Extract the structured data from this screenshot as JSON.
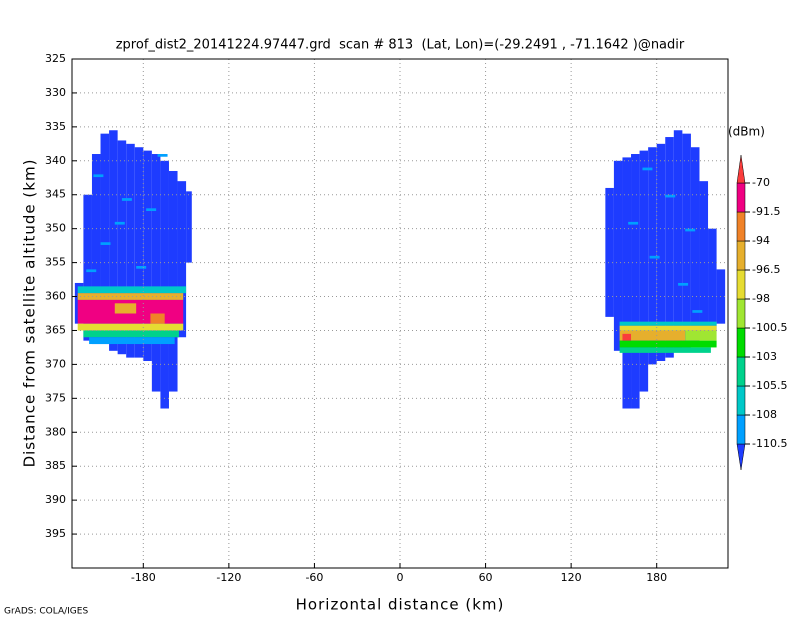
{
  "chart_data": {
    "type": "heatmap",
    "title": "zprof_dist2_20141224.97447.grd  scan # 813  (Lat, Lon)=(-29.2491 , -71.1642 )@nadir",
    "x_label": "Horizontal distance (km)",
    "y_label": "Distance from satellite altitude (km)",
    "footer": "GrADS: COLA/IGES",
    "colorbar_unit": "(dBm)",
    "xlim": [
      -230,
      230
    ],
    "ylim": [
      400,
      325
    ],
    "y_inverted": true,
    "xticks": [
      -180,
      -120,
      -60,
      0,
      60,
      120,
      180
    ],
    "yticks": [
      325,
      330,
      335,
      340,
      345,
      350,
      355,
      360,
      365,
      370,
      375,
      380,
      385,
      390,
      395
    ],
    "grid": true,
    "levels": [
      -110.5,
      -108,
      -105.5,
      -103,
      -100.5,
      -98,
      -96.5,
      -94,
      -91.5,
      -70
    ],
    "colors": [
      "#1e3cff",
      "#00a0ff",
      "#00c8c8",
      "#00d28c",
      "#00dc00",
      "#a0e632",
      "#e6dc32",
      "#e6af2d",
      "#f08228",
      "#f00082",
      "#fa3c3c"
    ],
    "cells": [
      {
        "x": [
          -228,
          -222
        ],
        "y": [
          358,
          364
        ],
        "value": -112
      },
      {
        "x": [
          -222,
          -216
        ],
        "y": [
          345,
          366.5
        ],
        "value": -112
      },
      {
        "x": [
          -216,
          -210
        ],
        "y": [
          339,
          367
        ],
        "value": -112
      },
      {
        "x": [
          -210,
          -204
        ],
        "y": [
          336,
          367
        ],
        "value": -112
      },
      {
        "x": [
          -204,
          -198
        ],
        "y": [
          335.5,
          368
        ],
        "value": -112
      },
      {
        "x": [
          -198,
          -192
        ],
        "y": [
          337,
          368.5
        ],
        "value": -112
      },
      {
        "x": [
          -192,
          -186
        ],
        "y": [
          337.5,
          369
        ],
        "value": -112
      },
      {
        "x": [
          -186,
          -180
        ],
        "y": [
          338,
          369
        ],
        "value": -112
      },
      {
        "x": [
          -180,
          -174
        ],
        "y": [
          338.5,
          369.5
        ],
        "value": -112
      },
      {
        "x": [
          -174,
          -168
        ],
        "y": [
          339,
          374
        ],
        "value": -112
      },
      {
        "x": [
          -168,
          -162
        ],
        "y": [
          340,
          376.5
        ],
        "value": -112
      },
      {
        "x": [
          -162,
          -156
        ],
        "y": [
          341.5,
          374
        ],
        "value": -112
      },
      {
        "x": [
          -156,
          -150
        ],
        "y": [
          343,
          366
        ],
        "value": -112
      },
      {
        "x": [
          -150,
          -146
        ],
        "y": [
          344.5,
          355
        ],
        "value": -112
      },
      {
        "x": [
          -226,
          -150
        ],
        "y": [
          358.5,
          359.5
        ],
        "value": -107
      },
      {
        "x": [
          -226,
          -152
        ],
        "y": [
          359.5,
          360.5
        ],
        "value": -95
      },
      {
        "x": [
          -226,
          -152
        ],
        "y": [
          360.5,
          364
        ],
        "value": -88
      },
      {
        "x": [
          -200,
          -185
        ],
        "y": [
          361,
          362.5
        ],
        "value": -95
      },
      {
        "x": [
          -175,
          -165
        ],
        "y": [
          362.5,
          364
        ],
        "value": -93
      },
      {
        "x": [
          -226,
          -152
        ],
        "y": [
          364,
          365
        ],
        "value": -97
      },
      {
        "x": [
          -222,
          -155
        ],
        "y": [
          365,
          366
        ],
        "value": -104
      },
      {
        "x": [
          -218,
          -158
        ],
        "y": [
          366,
          367
        ],
        "value": -109
      },
      {
        "x": [
          -215,
          -208
        ],
        "y": [
          342,
          342.4
        ],
        "value": -109
      },
      {
        "x": [
          -195,
          -188
        ],
        "y": [
          345.5,
          345.9
        ],
        "value": -109
      },
      {
        "x": [
          -170,
          -163
        ],
        "y": [
          339,
          339.4
        ],
        "value": -109
      },
      {
        "x": [
          -210,
          -203
        ],
        "y": [
          352,
          352.4
        ],
        "value": -109
      },
      {
        "x": [
          -185,
          -178
        ],
        "y": [
          355.5,
          355.9
        ],
        "value": -109
      },
      {
        "x": [
          -200,
          -193
        ],
        "y": [
          349,
          349.4
        ],
        "value": -109
      },
      {
        "x": [
          -178,
          -171
        ],
        "y": [
          347,
          347.4
        ],
        "value": -109
      },
      {
        "x": [
          -220,
          -213
        ],
        "y": [
          356,
          356.4
        ],
        "value": -109
      },
      {
        "x": [
          144,
          150
        ],
        "y": [
          344,
          363
        ],
        "value": -112
      },
      {
        "x": [
          150,
          156
        ],
        "y": [
          340,
          368
        ],
        "value": -112
      },
      {
        "x": [
          156,
          162
        ],
        "y": [
          339.5,
          376.5
        ],
        "value": -112
      },
      {
        "x": [
          162,
          168
        ],
        "y": [
          339,
          376.5
        ],
        "value": -112
      },
      {
        "x": [
          168,
          174
        ],
        "y": [
          338.5,
          374
        ],
        "value": -112
      },
      {
        "x": [
          174,
          180
        ],
        "y": [
          338,
          370
        ],
        "value": -112
      },
      {
        "x": [
          180,
          186
        ],
        "y": [
          337.5,
          369.5
        ],
        "value": -112
      },
      {
        "x": [
          186,
          192
        ],
        "y": [
          336.5,
          369
        ],
        "value": -112
      },
      {
        "x": [
          192,
          198
        ],
        "y": [
          335.5,
          368
        ],
        "value": -112
      },
      {
        "x": [
          198,
          204
        ],
        "y": [
          336,
          367.5
        ],
        "value": -112
      },
      {
        "x": [
          204,
          210
        ],
        "y": [
          338,
          367
        ],
        "value": -112
      },
      {
        "x": [
          210,
          216
        ],
        "y": [
          343,
          366
        ],
        "value": -112
      },
      {
        "x": [
          216,
          222
        ],
        "y": [
          350,
          365
        ],
        "value": -112
      },
      {
        "x": [
          222,
          228
        ],
        "y": [
          356,
          364
        ],
        "value": -112
      },
      {
        "x": [
          154,
          222
        ],
        "y": [
          363.7,
          364.3
        ],
        "value": -107
      },
      {
        "x": [
          154,
          222
        ],
        "y": [
          364.3,
          365
        ],
        "value": -97
      },
      {
        "x": [
          154,
          200
        ],
        "y": [
          365,
          366.5
        ],
        "value": -95
      },
      {
        "x": [
          200,
          222
        ],
        "y": [
          365,
          366.5
        ],
        "value": -99
      },
      {
        "x": [
          156,
          162
        ],
        "y": [
          365.5,
          366.5
        ],
        "value": -68
      },
      {
        "x": [
          154,
          222
        ],
        "y": [
          366.5,
          367.5
        ],
        "value": -102
      },
      {
        "x": [
          154,
          218
        ],
        "y": [
          367.5,
          368.3
        ],
        "value": -105
      },
      {
        "x": [
          170,
          177
        ],
        "y": [
          341,
          341.4
        ],
        "value": -109
      },
      {
        "x": [
          186,
          193
        ],
        "y": [
          345,
          345.4
        ],
        "value": -109
      },
      {
        "x": [
          200,
          207
        ],
        "y": [
          350,
          350.4
        ],
        "value": -109
      },
      {
        "x": [
          175,
          182
        ],
        "y": [
          354,
          354.4
        ],
        "value": -109
      },
      {
        "x": [
          195,
          202
        ],
        "y": [
          358,
          358.4
        ],
        "value": -109
      },
      {
        "x": [
          160,
          167
        ],
        "y": [
          349,
          349.4
        ],
        "value": -109
      },
      {
        "x": [
          205,
          212
        ],
        "y": [
          362,
          362.4
        ],
        "value": -109
      }
    ]
  }
}
